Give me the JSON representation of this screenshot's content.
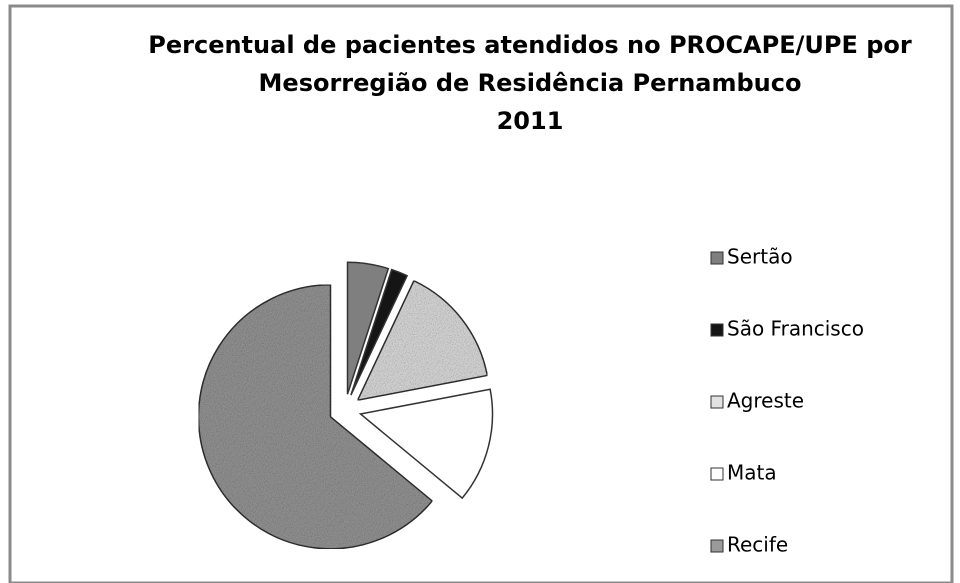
{
  "chart_data": {
    "type": "pie",
    "title": [
      "Percentual de pacientes atendidos no PROCAPE/UPE por",
      "Mesorregião de Residência Pernambuco",
      "2011"
    ],
    "categories": [
      "Sertão",
      "São Francisco",
      "Agreste",
      "Mata",
      "Recife"
    ],
    "values": [
      5,
      2,
      15,
      14,
      64
    ],
    "colors": [
      "#7f7f7f",
      "#151515",
      "#e2e2e2",
      "#ffffff",
      "#9a9a9a"
    ],
    "legend": "right"
  }
}
